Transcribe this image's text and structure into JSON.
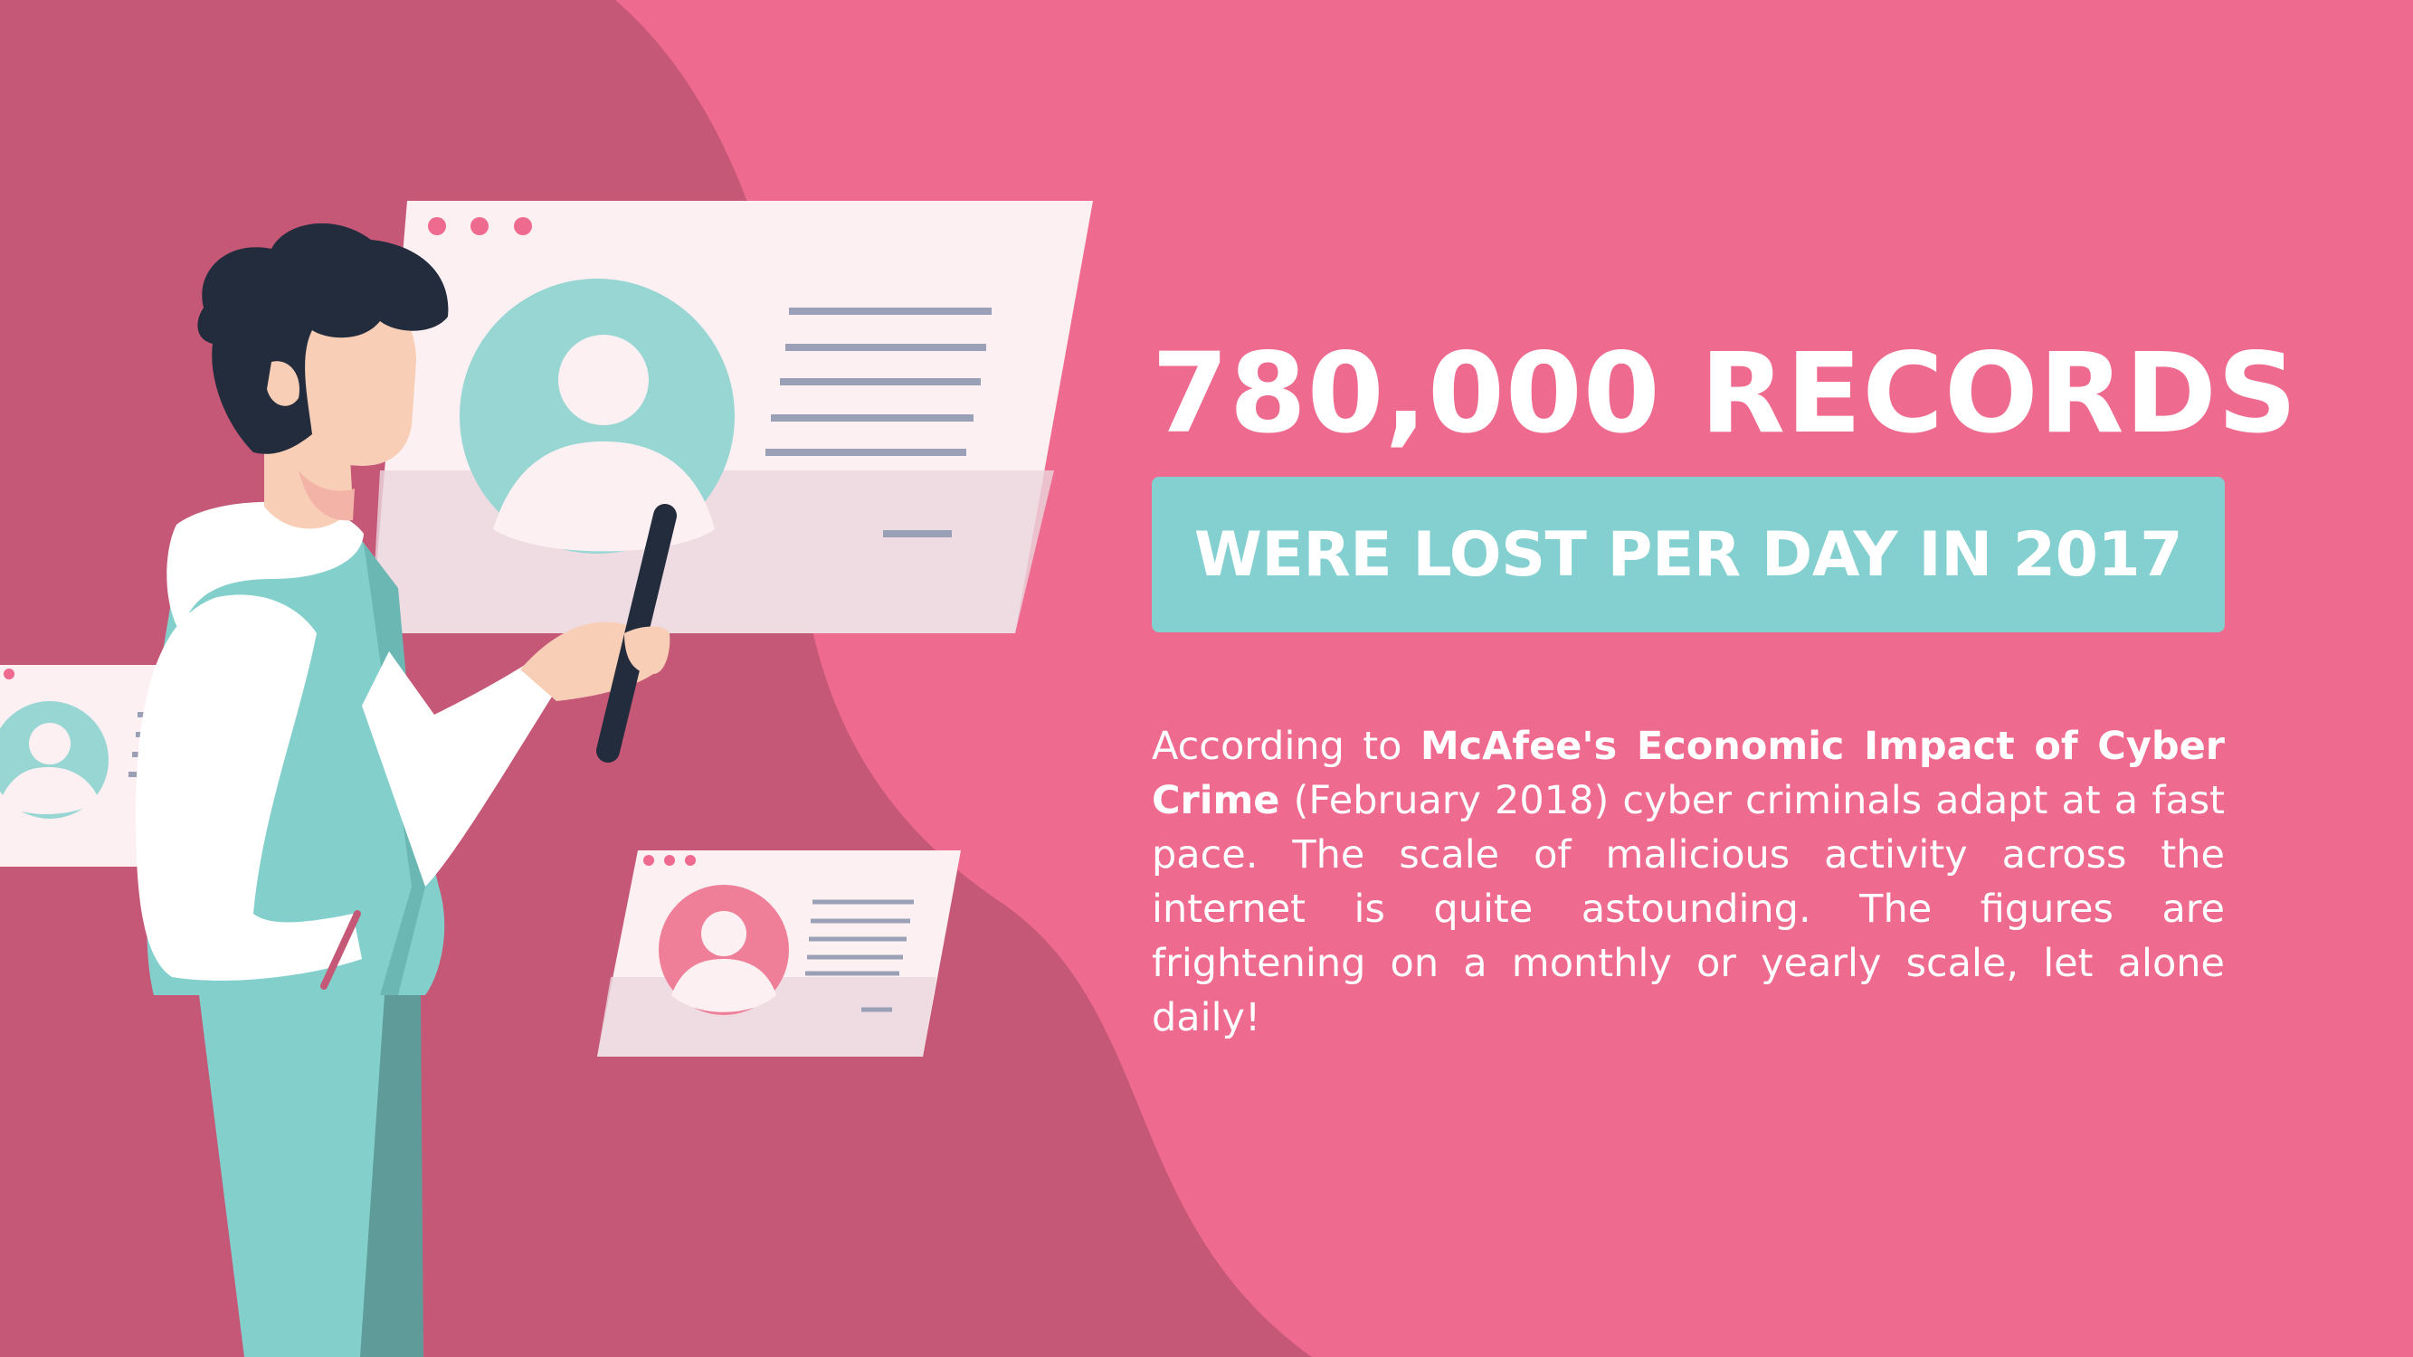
{
  "headline": "780,000 RECORDS",
  "banner": "WERE LOST PER DAY IN 2017",
  "body": {
    "intro": "According to ",
    "source": "McAfee's Economic Impact of Cyber Crime",
    "rest": " (February 2018) cyber criminals adapt at a fast pace. The scale of malicious activity across the internet is quite astounding. The figures are frightening on a monthly or yearly scale, let alone daily!"
  },
  "colors": {
    "background": "#ef6a8f",
    "dark_blob": "#c55877",
    "banner": "#84d0d0",
    "text": "#ffffff",
    "teal": "#82cfcc",
    "hair": "#232c3d",
    "skin": "#f8cfb6"
  },
  "illustration": {
    "figure": "person-with-magnifying-glass",
    "cards": [
      "profile-card-large",
      "profile-card-left",
      "profile-card-small"
    ]
  }
}
